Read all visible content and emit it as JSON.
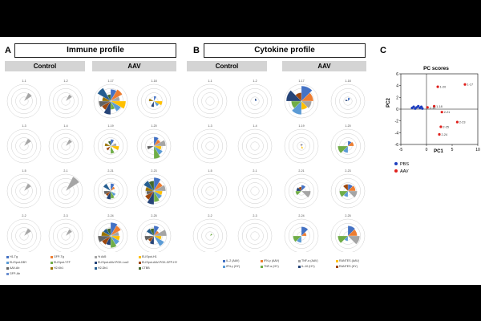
{
  "panels": {
    "a": {
      "letter": "A",
      "title": "Immune profile",
      "groups": [
        "Control",
        "AAV"
      ]
    },
    "b": {
      "letter": "B",
      "title": "Cytokine profile",
      "groups": [
        "Control",
        "AAV"
      ]
    },
    "c": {
      "letter": "C"
    }
  },
  "radar_labels": {
    "immune": [
      "1-1",
      "1-2",
      "1-17",
      "1-18",
      "1-3",
      "1-4",
      "1-19",
      "1-20",
      "1-5",
      "2-1",
      "2-21",
      "2-23",
      "2-2",
      "2-3",
      "2-24",
      "2-25"
    ],
    "cytokine": [
      "1-1",
      "1-2",
      "1-17",
      "1-18",
      "1-3",
      "1-4",
      "1-19",
      "1-20",
      "1-5",
      "2-1",
      "2-21",
      "2-23",
      "2-2",
      "2-3",
      "2-24",
      "2-25"
    ]
  },
  "legends": {
    "immune": [
      {
        "label": "H1-Tg",
        "color": "#4472c4"
      },
      {
        "label": "GFP-Tg",
        "color": "#ed7d31"
      },
      {
        "label": "% Ad5",
        "color": "#a5a5a5"
      },
      {
        "label": "ELISpot-H1",
        "color": "#ffc000"
      },
      {
        "label": "ELISpot-DBY",
        "color": "#5b9bd5"
      },
      {
        "label": "ELISpot-YTF",
        "color": "#70ad47"
      },
      {
        "label": "ELISpot-AAV-PGK-Luc2",
        "color": "#264478"
      },
      {
        "label": "ELISpot-AAV-PGK-GFP-HY",
        "color": "#9e480e"
      },
      {
        "label": "AAV-Ab",
        "color": "#636363"
      },
      {
        "label": "H2-Kb1",
        "color": "#997300"
      },
      {
        "label": "H2-Db1",
        "color": "#255e91"
      },
      {
        "label": "CTBB",
        "color": "#43682b"
      },
      {
        "label": "GFP-Ab",
        "color": "#698ed0"
      }
    ],
    "cytokine": [
      {
        "label": "IL-2 (AAV)",
        "color": "#4472c4"
      },
      {
        "label": "IFN-γ (AAV)",
        "color": "#ed7d31"
      },
      {
        "label": "TNF-α (AAV)",
        "color": "#a5a5a5"
      },
      {
        "label": "RANTES (AAV)",
        "color": "#ffc000"
      },
      {
        "label": "IFN-γ (HY)",
        "color": "#5b9bd5"
      },
      {
        "label": "TNF-α (HY)",
        "color": "#70ad47"
      },
      {
        "label": "IL-10 (HY)",
        "color": "#264478"
      },
      {
        "label": "RANTES (HY)",
        "color": "#9e480e"
      }
    ]
  },
  "chart_data": {
    "type": "scatter",
    "title": "PC scores",
    "xlabel": "PC1",
    "ylabel": "PC2",
    "xlim": [
      -5,
      10
    ],
    "ylim": [
      -6,
      6
    ],
    "xticks": [
      -5,
      0,
      5,
      10
    ],
    "yticks": [
      -6,
      -4,
      -2,
      0,
      2,
      4,
      6
    ],
    "series": [
      {
        "name": "PBS",
        "color": "#1f3fbf",
        "points": [
          {
            "x": -2.8,
            "y": 0.2
          },
          {
            "x": -2.5,
            "y": 0.4
          },
          {
            "x": -2.2,
            "y": 0.1
          },
          {
            "x": -1.9,
            "y": 0.3
          },
          {
            "x": -1.6,
            "y": 0.5
          },
          {
            "x": -1.3,
            "y": 0.2
          },
          {
            "x": -1.0,
            "y": 0.4
          },
          {
            "x": -0.8,
            "y": 0.1
          }
        ]
      },
      {
        "name": "AAV",
        "color": "#e0201c",
        "points": [
          {
            "x": 7.5,
            "y": 4.2,
            "label": "1-17"
          },
          {
            "x": 2.2,
            "y": 3.8,
            "label": "1-20"
          },
          {
            "x": 1.5,
            "y": 0.5,
            "label": "1-18"
          },
          {
            "x": 3.0,
            "y": -0.5,
            "label": "2-21"
          },
          {
            "x": 6.0,
            "y": -2.2,
            "label": "2-23"
          },
          {
            "x": 2.8,
            "y": -3.0,
            "label": "2-25"
          },
          {
            "x": 2.5,
            "y": -4.3,
            "label": "2-24"
          },
          {
            "x": 0.2,
            "y": 0.3,
            "label": "1-19"
          }
        ]
      }
    ],
    "legend": [
      {
        "name": "PBS"
      },
      {
        "name": "AAV"
      }
    ]
  }
}
